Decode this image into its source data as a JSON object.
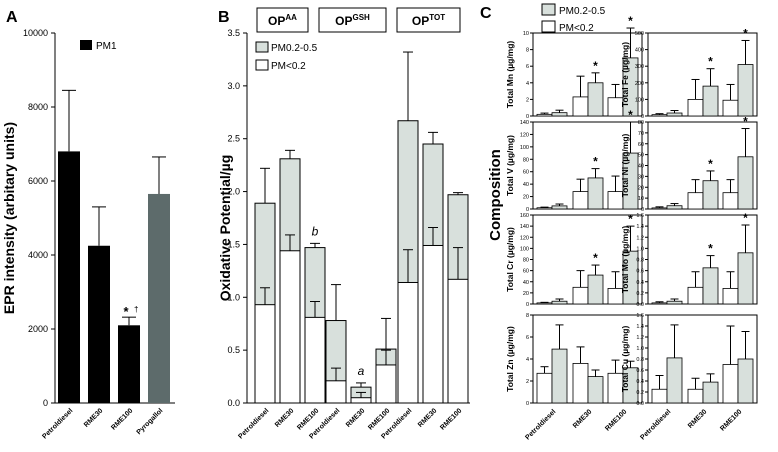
{
  "colors": {
    "black": "#000000",
    "grey": "#5d6b6b",
    "light": "#d8e0dc",
    "white": "#ffffff"
  },
  "chart_data": [
    {
      "panel": "A",
      "type": "bar",
      "ylabel": "EPR intensity (arbitary units)",
      "ylim": [
        0,
        10000
      ],
      "ticks": [
        "0",
        "2000",
        "4000",
        "6000",
        "8000",
        "10000"
      ],
      "tick_values": [
        0,
        2000,
        4000,
        6000,
        8000,
        10000
      ],
      "legend": [
        "PM1"
      ],
      "categories": [
        "Petroldiesel",
        "RME30",
        "RME100",
        "Pyrogallol"
      ],
      "values": [
        6800,
        4250,
        2100,
        5650
      ],
      "errors": [
        1650,
        1050,
        220,
        1000
      ],
      "bar_colors": [
        "#000000",
        "#000000",
        "#000000",
        "#5d6b6b"
      ],
      "annotation": {
        "bar_index": 2,
        "text": "*",
        "dagger": "†"
      }
    },
    {
      "panel": "B",
      "type": "bar",
      "stacked": true,
      "ylabel": "Oxidative Potential/µg",
      "ylim": [
        0,
        3.5
      ],
      "ticks": [
        "0.0",
        "0.5",
        "1.0",
        "1.5",
        "2.0",
        "2.5",
        "3.0",
        "3.5"
      ],
      "tick_values": [
        0,
        0.5,
        1,
        1.5,
        2,
        2.5,
        3,
        3.5
      ],
      "legend": [
        "PM0.2-0.5",
        "PM<0.2"
      ],
      "groups": [
        {
          "title": "OP",
          "sup": "AA",
          "categories": [
            "Petroldiesel",
            "RME30",
            "RME100"
          ],
          "coarse": [
            1.89,
            2.31,
            1.47
          ],
          "coarse_err": [
            0.33,
            0.08,
            0.04
          ],
          "fine": [
            0.93,
            1.44,
            0.81
          ],
          "fine_err": [
            0.16,
            0.15,
            0.15
          ],
          "labels": [
            "",
            "",
            "b"
          ]
        },
        {
          "title": "OP",
          "sup": "GSH",
          "categories": [
            "Petroldiesel",
            "RME30",
            "RME100"
          ],
          "coarse": [
            0.78,
            0.15,
            0.51
          ],
          "coarse_err": [
            0.34,
            0.04,
            0.29
          ],
          "fine": [
            0.21,
            0.05,
            0.36
          ],
          "fine_err": [
            0.12,
            0.05,
            0.14
          ],
          "labels": [
            "",
            "a",
            ""
          ]
        },
        {
          "title": "OP",
          "sup": "TOT",
          "categories": [
            "Petroldiesel",
            "RME30",
            "RME100"
          ],
          "coarse": [
            2.67,
            2.45,
            1.97
          ],
          "coarse_err": [
            0.65,
            0.11,
            0.02
          ],
          "fine": [
            1.14,
            1.49,
            1.17
          ],
          "fine_err": [
            0.31,
            0.17,
            0.3
          ],
          "labels": [
            "",
            "",
            ""
          ]
        }
      ]
    },
    {
      "panel": "C",
      "type": "bar",
      "ylabel": "Composition",
      "legend": [
        "PM0.2-0.5",
        "PM<0.2"
      ],
      "categories": [
        "Petroldiesel",
        "RME30",
        "RME100"
      ],
      "subplots": [
        {
          "metal": "Mn",
          "label": "Total Mn (µg/mg)",
          "ylim": [
            0,
            10
          ],
          "ticks": [
            "0",
            "2",
            "4",
            "6",
            "8",
            "10"
          ],
          "tick_values": [
            0,
            2,
            4,
            6,
            8,
            10
          ],
          "fine": [
            0.2,
            2.3,
            2.2
          ],
          "fine_err": [
            0.15,
            2.5,
            1.6
          ],
          "coarse": [
            0.4,
            4.0,
            7.0
          ],
          "coarse_err": [
            0.3,
            1.2,
            3.6
          ],
          "star": [
            false,
            true,
            true
          ],
          "show_x": false
        },
        {
          "metal": "Fe",
          "label": "Total Fe (µg/mg)",
          "ylim": [
            0,
            500
          ],
          "ticks": [
            "0",
            "100",
            "200",
            "300",
            "400",
            "500"
          ],
          "tick_values": [
            0,
            100,
            200,
            300,
            400,
            500
          ],
          "fine": [
            8,
            100,
            95
          ],
          "fine_err": [
            6,
            120,
            95
          ],
          "coarse": [
            18,
            180,
            310
          ],
          "coarse_err": [
            15,
            105,
            145
          ],
          "star": [
            false,
            true,
            true
          ],
          "show_x": false
        },
        {
          "metal": "V",
          "label": "Total V (µg/mg)",
          "ylim": [
            0,
            140
          ],
          "ticks": [
            "0",
            "20",
            "40",
            "60",
            "80",
            "100",
            "120",
            "140"
          ],
          "tick_values": [
            0,
            20,
            40,
            60,
            80,
            100,
            120,
            140
          ],
          "fine": [
            2,
            28,
            28
          ],
          "fine_err": [
            1,
            20,
            25
          ],
          "coarse": [
            5,
            50,
            90
          ],
          "coarse_err": [
            3,
            15,
            50
          ],
          "star": [
            false,
            true,
            true
          ],
          "show_x": false
        },
        {
          "metal": "Ni",
          "label": "Total Ni (µg/mg)",
          "ylim": [
            0,
            80
          ],
          "ticks": [
            "0",
            "10",
            "20",
            "30",
            "40",
            "50",
            "60",
            "70",
            "80"
          ],
          "tick_values": [
            0,
            10,
            20,
            30,
            40,
            50,
            60,
            70,
            80
          ],
          "fine": [
            1,
            15,
            15
          ],
          "fine_err": [
            1,
            12,
            12
          ],
          "coarse": [
            3,
            26,
            48
          ],
          "coarse_err": [
            2,
            9,
            26
          ],
          "star": [
            false,
            true,
            true
          ],
          "show_x": false
        },
        {
          "metal": "Cr",
          "label": "Total Cr (µg/mg)",
          "ylim": [
            0,
            160
          ],
          "ticks": [
            "0",
            "20",
            "40",
            "60",
            "80",
            "100",
            "120",
            "140",
            "160"
          ],
          "tick_values": [
            0,
            20,
            40,
            60,
            80,
            100,
            120,
            140,
            160
          ],
          "fine": [
            2,
            30,
            28
          ],
          "fine_err": [
            1,
            30,
            30
          ],
          "coarse": [
            5,
            52,
            95
          ],
          "coarse_err": [
            4,
            18,
            45
          ],
          "star": [
            false,
            true,
            true
          ],
          "show_x": false
        },
        {
          "metal": "Mo",
          "label": "Total Mo (µg/mg)",
          "ylim": [
            0,
            1.6
          ],
          "ticks": [
            "0.0",
            "0.2",
            "0.4",
            "0.6",
            "0.8",
            "1.0",
            "1.2",
            "1.4",
            "1.6"
          ],
          "tick_values": [
            0,
            0.2,
            0.4,
            0.6,
            0.8,
            1.0,
            1.2,
            1.4,
            1.6
          ],
          "fine": [
            0.02,
            0.3,
            0.28
          ],
          "fine_err": [
            0.02,
            0.28,
            0.3
          ],
          "coarse": [
            0.05,
            0.65,
            0.92
          ],
          "coarse_err": [
            0.04,
            0.22,
            0.5
          ],
          "star": [
            false,
            true,
            true
          ],
          "show_x": false
        },
        {
          "metal": "Zn",
          "label": "Total Zn (µg/mg)",
          "ylim": [
            0,
            8
          ],
          "ticks": [
            "0",
            "2",
            "4",
            "6",
            "8"
          ],
          "tick_values": [
            0,
            2,
            4,
            6,
            8
          ],
          "fine": [
            2.7,
            3.6,
            2.7
          ],
          "fine_err": [
            0.6,
            1.5,
            1.2
          ],
          "coarse": [
            4.9,
            2.4,
            3.2
          ],
          "coarse_err": [
            2.2,
            0.6,
            0.6
          ],
          "star": [
            false,
            false,
            false
          ],
          "show_x": true
        },
        {
          "metal": "Cu",
          "label": "Total Cu (µg/mg)",
          "ylim": [
            0,
            1.6
          ],
          "ticks": [
            "0.0",
            "0.2",
            "0.4",
            "0.6",
            "0.8",
            "1.0",
            "1.2",
            "1.4",
            "1.6"
          ],
          "tick_values": [
            0,
            0.2,
            0.4,
            0.6,
            0.8,
            1.0,
            1.2,
            1.4,
            1.6
          ],
          "fine": [
            0.25,
            0.25,
            0.7
          ],
          "fine_err": [
            0.25,
            0.2,
            0.7
          ],
          "coarse": [
            0.82,
            0.38,
            0.8
          ],
          "coarse_err": [
            0.6,
            0.15,
            0.5
          ],
          "star": [
            false,
            false,
            false
          ],
          "show_x": true
        }
      ]
    }
  ]
}
